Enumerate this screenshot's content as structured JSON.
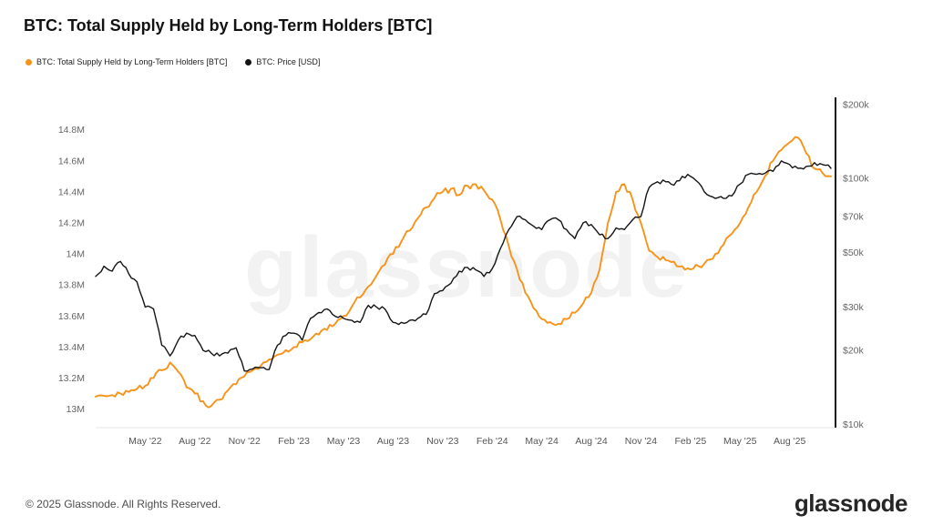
{
  "page": {
    "title": "BTC: Total Supply Held by Long-Term Holders [BTC]",
    "watermark": "glassnode",
    "footer": {
      "copyright": "© 2025 Glassnode. All Rights Reserved.",
      "brand": "glassnode"
    }
  },
  "legend": {
    "items": [
      {
        "label": "BTC: Total Supply Held by Long-Term Holders [BTC]",
        "color": "#F7931A"
      },
      {
        "label": "BTC: Price [USD]",
        "color": "#141414"
      }
    ]
  },
  "chart_data": {
    "type": "line",
    "title": "BTC: Total Supply Held by Long-Term Holders [BTC]",
    "grid": false,
    "legend_position": "top-left",
    "x_unit": "months (0 = Feb 2022, half-month steps)",
    "x_range": [
      0,
      44.5
    ],
    "x_tick_labels": [
      "May '22",
      "Aug '22",
      "Nov '22",
      "Feb '23",
      "May '23",
      "Aug '23",
      "Nov '23",
      "Feb '24",
      "May '24",
      "Aug '24",
      "Nov '24",
      "Feb '25",
      "May '25",
      "Aug '25"
    ],
    "x_tick_positions": [
      3,
      6,
      9,
      12,
      15,
      18,
      21,
      24,
      27,
      30,
      33,
      36,
      39,
      42
    ],
    "left_axis": {
      "scale": "linear",
      "min": 12.88,
      "max": 14.98,
      "tick_labels": [
        "14.8M",
        "14.6M",
        "14.4M",
        "14.2M",
        "14M",
        "13.8M",
        "13.6M",
        "13.4M",
        "13.2M",
        "13M"
      ],
      "tick_values": [
        14.8,
        14.6,
        14.4,
        14.2,
        14.0,
        13.8,
        13.6,
        13.4,
        13.2,
        13.0
      ]
    },
    "right_axis": {
      "scale": "log",
      "min": 9700,
      "max": 205000,
      "tick_labels": [
        "$200k",
        "$100k",
        "$70k",
        "$50k",
        "$30k",
        "$20k",
        "$10k"
      ],
      "tick_values": [
        200000,
        100000,
        70000,
        50000,
        30000,
        20000,
        10000
      ]
    },
    "series": [
      {
        "name": "BTC: Total Supply Held by Long-Term Holders [BTC]",
        "axis": "left",
        "unit": "BTC (millions)",
        "color": "#F7931A",
        "x_start": 0,
        "x_step": 0.5,
        "values": [
          13.08,
          13.085,
          13.09,
          13.1,
          13.11,
          13.13,
          13.15,
          13.2,
          13.25,
          13.3,
          13.24,
          13.14,
          13.1,
          13.05,
          13.02,
          13.06,
          13.12,
          13.16,
          13.21,
          13.25,
          13.28,
          13.32,
          13.35,
          13.38,
          13.4,
          13.43,
          13.45,
          13.48,
          13.51,
          13.55,
          13.6,
          13.66,
          13.72,
          13.79,
          13.86,
          13.93,
          14.0,
          14.08,
          14.15,
          14.23,
          14.3,
          14.36,
          14.4,
          14.42,
          14.38,
          14.44,
          14.45,
          14.41,
          14.35,
          14.22,
          14.05,
          13.9,
          13.75,
          13.65,
          13.58,
          13.56,
          13.55,
          13.58,
          13.62,
          13.68,
          13.75,
          13.9,
          14.2,
          14.4,
          14.45,
          14.35,
          14.2,
          14.02,
          13.98,
          13.96,
          13.95,
          13.92,
          13.9,
          13.92,
          13.96,
          14.0,
          14.06,
          14.13,
          14.2,
          14.3,
          14.4,
          14.5,
          14.6,
          14.67,
          14.72,
          14.75,
          14.65,
          14.55,
          14.52,
          14.5
        ]
      },
      {
        "name": "BTC: Price [USD]",
        "axis": "right",
        "unit": "USD",
        "color": "#141414",
        "x_start": 0,
        "x_step": 0.5,
        "values": [
          40000,
          44000,
          42000,
          46000,
          41000,
          38000,
          30000,
          29500,
          21000,
          19000,
          22000,
          23500,
          23000,
          20000,
          19500,
          19000,
          19500,
          20500,
          16500,
          16800,
          17000,
          16700,
          21000,
          23000,
          23500,
          22000,
          27000,
          28500,
          29500,
          27500,
          27000,
          26500,
          26000,
          30500,
          30000,
          29500,
          26000,
          26000,
          26500,
          27000,
          28000,
          34000,
          35000,
          37500,
          42000,
          43500,
          42500,
          40000,
          43000,
          52000,
          62000,
          70000,
          68000,
          64000,
          62000,
          68000,
          68000,
          62000,
          57000,
          66000,
          65000,
          59000,
          57000,
          63000,
          62000,
          68000,
          70000,
          92000,
          97000,
          97000,
          94000,
          102000,
          102000,
          96000,
          86000,
          83000,
          83000,
          85000,
          95000,
          104000,
          104000,
          105000,
          107000,
          118000,
          114000,
          110000,
          112000,
          116000,
          114000,
          110000
        ]
      }
    ]
  }
}
